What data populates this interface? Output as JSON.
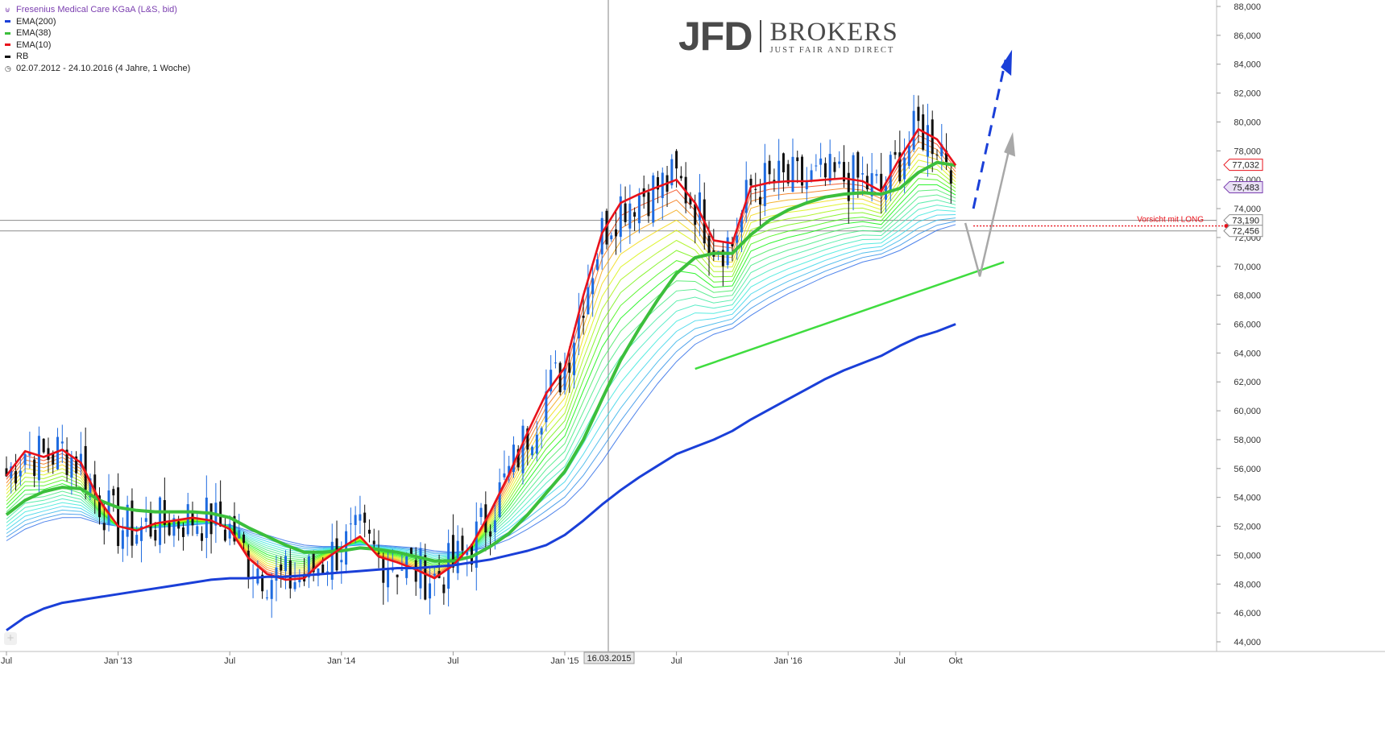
{
  "legend": {
    "title": "Fresenius Medical Care KGaA (L&S, bid)",
    "items": [
      {
        "label": "EMA(200)",
        "color": "#1a3fd8"
      },
      {
        "label": "EMA(38)",
        "color": "#3cbf3c"
      },
      {
        "label": "EMA(10)",
        "color": "#e8121b"
      },
      {
        "label": "RB",
        "color": "#111111"
      }
    ],
    "range": "02.07.2012 - 24.10.2016 (4 Jahre, 1 Woche)"
  },
  "logo": {
    "brand": "JFD",
    "name": "BROKERS",
    "tagline": "JUST FAIR AND DIRECT"
  },
  "chart_data": {
    "type": "line",
    "ylim": [
      44000,
      88000
    ],
    "y_ticks": [
      "44,000",
      "46,000",
      "48,000",
      "50,000",
      "52,000",
      "54,000",
      "56,000",
      "58,000",
      "60,000",
      "62,000",
      "64,000",
      "66,000",
      "68,000",
      "70,000",
      "72,000",
      "74,000",
      "76,000",
      "78,000",
      "80,000",
      "82,000",
      "84,000",
      "86,000",
      "88,000"
    ],
    "x_ticks": [
      {
        "label": "Jul",
        "x": "2012-07"
      },
      {
        "label": "Jan '13",
        "x": "2013-01"
      },
      {
        "label": "Jul",
        "x": "2013-07"
      },
      {
        "label": "Jan '14",
        "x": "2014-01"
      },
      {
        "label": "Jul",
        "x": "2014-07"
      },
      {
        "label": "Jan '15",
        "x": "2015-01"
      },
      {
        "label": "Jul",
        "x": "2015-07"
      },
      {
        "label": "Jan '16",
        "x": "2016-01"
      },
      {
        "label": "Jul",
        "x": "2016-07"
      },
      {
        "label": "Okt",
        "x": "2016-10"
      }
    ],
    "crosshair_date": "16.03.2015",
    "price_labels": [
      {
        "value": 77032,
        "text": "77,032"
      },
      {
        "value": 75483,
        "text": "75,483"
      },
      {
        "value": 73190,
        "text": "73,190"
      },
      {
        "value": 72456,
        "text": "72,456"
      }
    ],
    "annotation": "Vorsicht mit LONG",
    "ema10": [
      [
        "2012-07",
        55500
      ],
      [
        "2012-08",
        57200
      ],
      [
        "2012-09",
        56800
      ],
      [
        "2012-10",
        57300
      ],
      [
        "2012-11",
        56400
      ],
      [
        "2012-12",
        53800
      ],
      [
        "2013-01",
        52000
      ],
      [
        "2013-02",
        51700
      ],
      [
        "2013-03",
        52200
      ],
      [
        "2013-04",
        52400
      ],
      [
        "2013-05",
        52600
      ],
      [
        "2013-06",
        52400
      ],
      [
        "2013-07",
        51800
      ],
      [
        "2013-08",
        49800
      ],
      [
        "2013-09",
        48700
      ],
      [
        "2013-10",
        48300
      ],
      [
        "2013-11",
        48400
      ],
      [
        "2013-12",
        49600
      ],
      [
        "2014-01",
        50500
      ],
      [
        "2014-02",
        51300
      ],
      [
        "2014-03",
        49900
      ],
      [
        "2014-04",
        49500
      ],
      [
        "2014-05",
        49000
      ],
      [
        "2014-06",
        48400
      ],
      [
        "2014-07",
        49300
      ],
      [
        "2014-08",
        50700
      ],
      [
        "2014-09",
        53000
      ],
      [
        "2014-10",
        55600
      ],
      [
        "2014-11",
        58500
      ],
      [
        "2014-12",
        61200
      ],
      [
        "2015-01",
        63000
      ],
      [
        "2015-02",
        68000
      ],
      [
        "2015-03",
        72300
      ],
      [
        "2015-04",
        74400
      ],
      [
        "2015-05",
        75000
      ],
      [
        "2015-06",
        75500
      ],
      [
        "2015-07",
        76000
      ],
      [
        "2015-08",
        74400
      ],
      [
        "2015-09",
        71800
      ],
      [
        "2015-10",
        71600
      ],
      [
        "2015-11",
        75500
      ],
      [
        "2015-12",
        75800
      ],
      [
        "2016-01",
        75900
      ],
      [
        "2016-02",
        75900
      ],
      [
        "2016-03",
        76000
      ],
      [
        "2016-04",
        76100
      ],
      [
        "2016-05",
        75900
      ],
      [
        "2016-06",
        75200
      ],
      [
        "2016-07",
        77500
      ],
      [
        "2016-08",
        79500
      ],
      [
        "2016-09",
        78800
      ],
      [
        "2016-10",
        77000
      ]
    ],
    "ema38": [
      [
        "2012-07",
        52800
      ],
      [
        "2012-08",
        53800
      ],
      [
        "2012-09",
        54400
      ],
      [
        "2012-10",
        54700
      ],
      [
        "2012-11",
        54600
      ],
      [
        "2012-12",
        53800
      ],
      [
        "2013-01",
        53300
      ],
      [
        "2013-02",
        53100
      ],
      [
        "2013-03",
        53000
      ],
      [
        "2013-04",
        53000
      ],
      [
        "2013-05",
        53000
      ],
      [
        "2013-06",
        52900
      ],
      [
        "2013-07",
        52600
      ],
      [
        "2013-08",
        51900
      ],
      [
        "2013-09",
        51300
      ],
      [
        "2013-10",
        50700
      ],
      [
        "2013-11",
        50200
      ],
      [
        "2013-12",
        50200
      ],
      [
        "2014-01",
        50300
      ],
      [
        "2014-02",
        50500
      ],
      [
        "2014-03",
        50400
      ],
      [
        "2014-04",
        50200
      ],
      [
        "2014-05",
        49900
      ],
      [
        "2014-06",
        49600
      ],
      [
        "2014-07",
        49600
      ],
      [
        "2014-08",
        49900
      ],
      [
        "2014-09",
        50600
      ],
      [
        "2014-10",
        51500
      ],
      [
        "2014-11",
        52800
      ],
      [
        "2014-12",
        54300
      ],
      [
        "2015-01",
        55800
      ],
      [
        "2015-02",
        58000
      ],
      [
        "2015-03",
        60800
      ],
      [
        "2015-04",
        63500
      ],
      [
        "2015-05",
        65700
      ],
      [
        "2015-06",
        67700
      ],
      [
        "2015-07",
        69500
      ],
      [
        "2015-08",
        70600
      ],
      [
        "2015-09",
        70900
      ],
      [
        "2015-10",
        70900
      ],
      [
        "2015-11",
        72200
      ],
      [
        "2015-12",
        73200
      ],
      [
        "2016-01",
        73900
      ],
      [
        "2016-02",
        74400
      ],
      [
        "2016-03",
        74800
      ],
      [
        "2016-04",
        75000
      ],
      [
        "2016-05",
        75100
      ],
      [
        "2016-06",
        75000
      ],
      [
        "2016-07",
        75400
      ],
      [
        "2016-08",
        76500
      ],
      [
        "2016-09",
        77200
      ],
      [
        "2016-10",
        77000
      ]
    ],
    "ema200": [
      [
        "2012-07",
        44800
      ],
      [
        "2012-08",
        45700
      ],
      [
        "2012-09",
        46300
      ],
      [
        "2012-10",
        46700
      ],
      [
        "2012-11",
        46900
      ],
      [
        "2012-12",
        47100
      ],
      [
        "2013-01",
        47300
      ],
      [
        "2013-02",
        47500
      ],
      [
        "2013-03",
        47700
      ],
      [
        "2013-04",
        47900
      ],
      [
        "2013-05",
        48100
      ],
      [
        "2013-06",
        48300
      ],
      [
        "2013-07",
        48400
      ],
      [
        "2013-08",
        48400
      ],
      [
        "2013-09",
        48500
      ],
      [
        "2013-10",
        48500
      ],
      [
        "2013-11",
        48600
      ],
      [
        "2013-12",
        48700
      ],
      [
        "2014-01",
        48800
      ],
      [
        "2014-02",
        48900
      ],
      [
        "2014-03",
        49000
      ],
      [
        "2014-04",
        49100
      ],
      [
        "2014-05",
        49100
      ],
      [
        "2014-06",
        49200
      ],
      [
        "2014-07",
        49300
      ],
      [
        "2014-08",
        49500
      ],
      [
        "2014-09",
        49700
      ],
      [
        "2014-10",
        50000
      ],
      [
        "2014-11",
        50300
      ],
      [
        "2014-12",
        50700
      ],
      [
        "2015-01",
        51400
      ],
      [
        "2015-02",
        52400
      ],
      [
        "2015-03",
        53500
      ],
      [
        "2015-04",
        54500
      ],
      [
        "2015-05",
        55400
      ],
      [
        "2015-06",
        56200
      ],
      [
        "2015-07",
        57000
      ],
      [
        "2015-08",
        57500
      ],
      [
        "2015-09",
        58000
      ],
      [
        "2015-10",
        58600
      ],
      [
        "2015-11",
        59400
      ],
      [
        "2015-12",
        60100
      ],
      [
        "2016-01",
        60800
      ],
      [
        "2016-02",
        61500
      ],
      [
        "2016-03",
        62200
      ],
      [
        "2016-04",
        62800
      ],
      [
        "2016-05",
        63300
      ],
      [
        "2016-06",
        63800
      ],
      [
        "2016-07",
        64500
      ],
      [
        "2016-08",
        65100
      ],
      [
        "2016-09",
        65500
      ],
      [
        "2016-10",
        66000
      ]
    ],
    "ribbon_envelope": [
      [
        "2012-07",
        51000
      ],
      [
        "2012-08",
        51800
      ],
      [
        "2012-09",
        52300
      ],
      [
        "2012-10",
        52600
      ],
      [
        "2012-11",
        52600
      ],
      [
        "2012-12",
        52200
      ],
      [
        "2013-01",
        52000
      ],
      [
        "2013-02",
        51900
      ],
      [
        "2013-03",
        51900
      ],
      [
        "2013-04",
        52000
      ],
      [
        "2013-05",
        52100
      ],
      [
        "2013-06",
        52200
      ],
      [
        "2013-07",
        52100
      ],
      [
        "2013-08",
        51700
      ],
      [
        "2013-09",
        51400
      ],
      [
        "2013-10",
        51000
      ],
      [
        "2013-11",
        50700
      ],
      [
        "2013-12",
        50600
      ],
      [
        "2014-01",
        50600
      ],
      [
        "2014-02",
        50700
      ],
      [
        "2014-03",
        50700
      ],
      [
        "2014-04",
        50600
      ],
      [
        "2014-05",
        50500
      ],
      [
        "2014-06",
        50300
      ],
      [
        "2014-07",
        50200
      ],
      [
        "2014-08",
        50300
      ],
      [
        "2014-09",
        50600
      ],
      [
        "2014-10",
        51100
      ],
      [
        "2014-11",
        51800
      ],
      [
        "2014-12",
        52600
      ],
      [
        "2015-01",
        53500
      ],
      [
        "2015-02",
        54800
      ],
      [
        "2015-03",
        56500
      ],
      [
        "2015-04",
        58400
      ],
      [
        "2015-05",
        60200
      ],
      [
        "2015-06",
        61900
      ],
      [
        "2015-07",
        63400
      ],
      [
        "2015-08",
        64600
      ],
      [
        "2015-09",
        65300
      ],
      [
        "2015-10",
        65700
      ],
      [
        "2015-11",
        66600
      ],
      [
        "2015-12",
        67400
      ],
      [
        "2016-01",
        68100
      ],
      [
        "2016-02",
        68700
      ],
      [
        "2016-03",
        69300
      ],
      [
        "2016-04",
        69800
      ],
      [
        "2016-05",
        70300
      ],
      [
        "2016-06",
        70600
      ],
      [
        "2016-07",
        71100
      ],
      [
        "2016-08",
        71800
      ],
      [
        "2016-09",
        72500
      ],
      [
        "2016-10",
        72900
      ]
    ],
    "support_line": [
      [
        "2015-08",
        62900
      ],
      [
        "2016-10",
        70300
      ]
    ],
    "horizontal_lines": [
      73190,
      72456
    ],
    "projection_up_dashed": [
      [
        "2016-10",
        74000
      ],
      [
        "2016-11",
        84300
      ]
    ],
    "projection_gray": [
      [
        "2016-10",
        73000
      ],
      [
        "2016-10",
        69500
      ],
      [
        "2016-11",
        78700
      ]
    ]
  }
}
